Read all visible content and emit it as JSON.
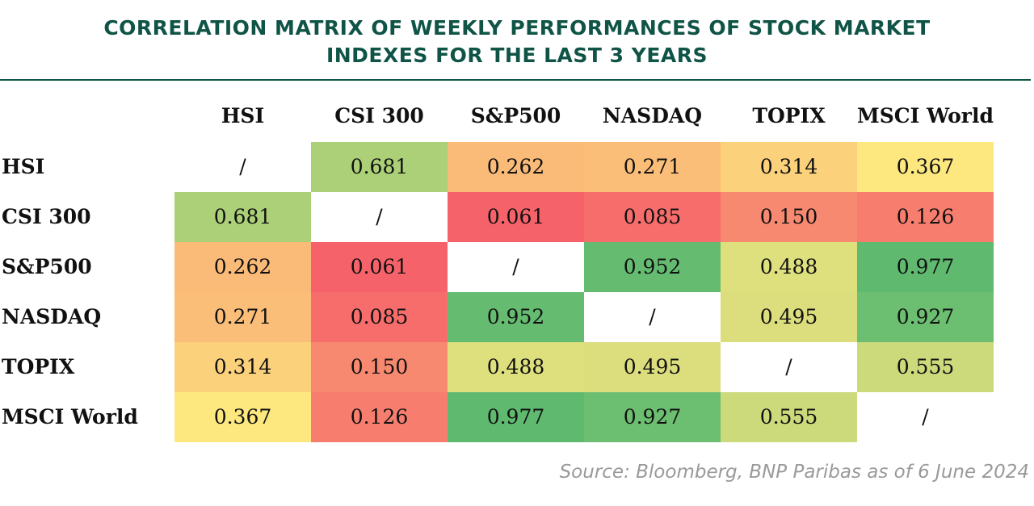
{
  "title_lines": [
    "CORRELATION MATRIX OF WEEKLY PERFORMANCES OF STOCK MARKET",
    "INDEXES FOR THE LAST 3 YEARS"
  ],
  "source": "Source: Bloomberg, BNP Paribas as of 6 June 2024",
  "colors": {
    "title": "#0f5446",
    "high": "#5fba70",
    "mid": "#fde880",
    "low": "#f5626a",
    "diagonal": "#ffffff"
  },
  "chart_data": {
    "type": "heatmap",
    "title": "CORRELATION MATRIX OF WEEKLY PERFORMANCES OF STOCK MARKET INDEXES FOR THE LAST 3 YEARS",
    "columns": [
      "HSI",
      "CSI 300",
      "S&P500",
      "NASDAQ",
      "TOPIX",
      "MSCI World"
    ],
    "rows": [
      "HSI",
      "CSI 300",
      "S&P500",
      "NASDAQ",
      "TOPIX",
      "MSCI World"
    ],
    "diagonal_label": "/",
    "values": [
      [
        null,
        "0.681",
        "0.262",
        "0.271",
        "0.314",
        "0.367"
      ],
      [
        "0.681",
        null,
        "0.061",
        "0.085",
        "0.150",
        "0.126"
      ],
      [
        "0.262",
        "0.061",
        null,
        "0.952",
        "0.488",
        "0.977"
      ],
      [
        "0.271",
        "0.085",
        "0.952",
        null,
        "0.495",
        "0.927"
      ],
      [
        "0.314",
        "0.150",
        "0.488",
        "0.495",
        null,
        "0.555"
      ],
      [
        "0.367",
        "0.126",
        "0.977",
        "0.927",
        "0.555",
        null
      ]
    ]
  }
}
